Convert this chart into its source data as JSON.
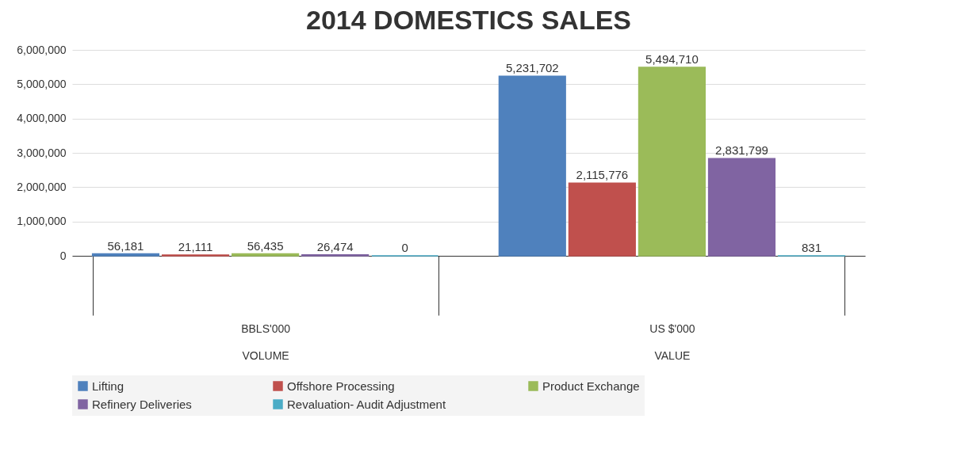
{
  "chart_data": {
    "type": "bar",
    "title": "2014 DOMESTICS SALES",
    "categories": [
      "BBLS'000",
      "US $'000"
    ],
    "annotations": [
      "VOLUME",
      "VALUE"
    ],
    "series": [
      {
        "name": "Lifting",
        "color": "#4f81bd",
        "values": [
          56181,
          5231702
        ],
        "value_labels": [
          "56,181",
          "5,231,702"
        ]
      },
      {
        "name": "Offshore Processing",
        "color": "#c0504d",
        "values": [
          21111,
          2115776
        ],
        "value_labels": [
          "21,111",
          "2,115,776"
        ]
      },
      {
        "name": "Product Exchange",
        "color": "#9bbb59",
        "values": [
          56435,
          5494710
        ],
        "value_labels": [
          "56,435",
          "5,494,710"
        ]
      },
      {
        "name": "Refinery Deliveries",
        "color": "#8064a2",
        "values": [
          26474,
          2831799
        ],
        "value_labels": [
          "26,474",
          "2,831,799"
        ]
      },
      {
        "name": "Revaluation- Audit Adjustment",
        "color": "#4bacc6",
        "values": [
          0,
          831
        ],
        "value_labels": [
          "0",
          "831"
        ]
      }
    ],
    "ylim": [
      0,
      6000000
    ],
    "yticks": [
      {
        "value": 0,
        "label": "0"
      },
      {
        "value": 1000000,
        "label": "1,000,000"
      },
      {
        "value": 2000000,
        "label": "2,000,000"
      },
      {
        "value": 3000000,
        "label": "3,000,000"
      },
      {
        "value": 4000000,
        "label": "4,000,000"
      },
      {
        "value": 5000000,
        "label": "5,000,000"
      },
      {
        "value": 6000000,
        "label": "6,000,000"
      }
    ],
    "grid": "y",
    "legend": "bottom"
  }
}
